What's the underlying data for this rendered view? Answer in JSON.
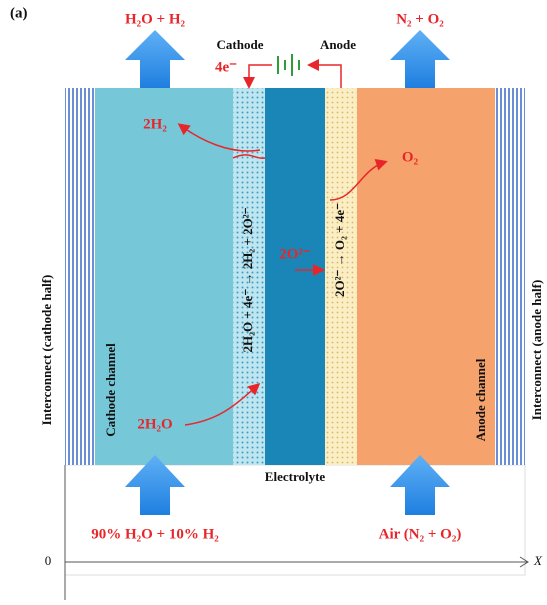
{
  "panel_label": "(a)",
  "outlets": {
    "cathode": "H₂O + H₂",
    "anode": "N₂ + O₂"
  },
  "circuit": {
    "cathode": "Cathode",
    "anode": "Anode",
    "electrons": "4e⁻"
  },
  "products": {
    "hydrogen": "2H₂",
    "oxygen": "O₂",
    "oxide_ion": "2O²⁻",
    "water": "2H₂O"
  },
  "reactions": {
    "cathode": "2H₂O + 4e⁻ → 2H₂ + 2O²⁻",
    "anode": "2O²⁻ → O₂ + 4e⁻"
  },
  "regions": {
    "cathode_channel": "Cathode channel",
    "anode_channel": "Anode channel",
    "left_interconnect": "Interconnect (cathode half)",
    "right_interconnect": "Interconnect (anode half)",
    "electrolyte": "Electrolyte"
  },
  "inlets": {
    "cathode": "90% H₂O + 10% H₂",
    "anode": "Air (N₂ + O₂)"
  },
  "axis": {
    "origin": "0",
    "label": "X"
  }
}
